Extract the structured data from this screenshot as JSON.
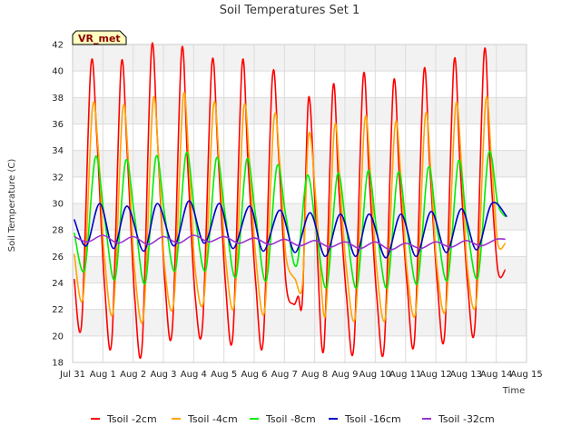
{
  "chart_data": {
    "type": "line",
    "title": "Soil Temperatures Set 1",
    "xlabel": "Time",
    "ylabel": "Soil Temperature (C)",
    "badge": "VR_met",
    "x_ticks": [
      "Jul 31",
      "Aug 1",
      "Aug 2",
      "Aug 3",
      "Aug 4",
      "Aug 5",
      "Aug 6",
      "Aug 7",
      "Aug 8",
      "Aug 9",
      "Aug 10",
      "Aug 11",
      "Aug 12",
      "Aug 13",
      "Aug 14",
      "Aug 15"
    ],
    "xlim": [
      0,
      15
    ],
    "ylim": [
      18,
      42
    ],
    "y_ticks": [
      18,
      20,
      22,
      24,
      26,
      28,
      30,
      32,
      34,
      36,
      38,
      40,
      42
    ],
    "grid": true,
    "legend_position": "bottom",
    "series": [
      {
        "name": "Tsoil -2cm",
        "color": "#ff0000",
        "x": [
          0.05,
          0.3,
          0.6,
          0.8,
          1.05,
          1.3,
          1.6,
          1.8,
          2.05,
          2.3,
          2.6,
          2.8,
          3.05,
          3.3,
          3.6,
          3.8,
          4.05,
          4.3,
          4.6,
          4.8,
          5.05,
          5.3,
          5.6,
          5.8,
          6.05,
          6.3,
          6.6,
          6.8,
          7.05,
          7.3,
          7.45,
          7.6,
          7.8,
          8.05,
          8.3,
          8.6,
          8.8,
          9.05,
          9.3,
          9.6,
          9.8,
          10.05,
          10.3,
          10.6,
          10.8,
          11.05,
          11.3,
          11.6,
          11.8,
          12.05,
          12.3,
          12.6,
          12.8,
          13.05,
          13.3,
          13.6,
          13.8,
          14.05,
          14.3
        ],
        "y": [
          24.3,
          21.0,
          40.3,
          35.0,
          24.0,
          19.8,
          40.3,
          34.0,
          23.0,
          19.4,
          41.5,
          35.0,
          24.0,
          20.7,
          41.5,
          33.0,
          23.0,
          21.0,
          40.5,
          34.0,
          24.0,
          20.2,
          40.5,
          33.0,
          24.0,
          19.7,
          39.5,
          34.0,
          24.0,
          22.4,
          23.0,
          23.0,
          38.0,
          28.0,
          19.0,
          38.7,
          31.0,
          23.0,
          19.4,
          39.5,
          32.0,
          23.0,
          19.3,
          39.0,
          32.0,
          24.0,
          19.8,
          39.8,
          33.0,
          24.0,
          20.3,
          40.6,
          33.0,
          24.0,
          20.9,
          41.4,
          33.0,
          25.0,
          25.0
        ]
      },
      {
        "name": "Tsoil -4cm",
        "color": "#ffa500",
        "x": [
          0.05,
          0.35,
          0.65,
          0.85,
          1.05,
          1.35,
          1.65,
          1.85,
          2.05,
          2.35,
          2.65,
          2.85,
          3.05,
          3.35,
          3.65,
          3.85,
          4.05,
          4.35,
          4.65,
          4.85,
          5.05,
          5.35,
          5.65,
          5.85,
          6.05,
          6.35,
          6.65,
          6.85,
          7.05,
          7.35,
          7.6,
          7.8,
          8.05,
          8.35,
          8.65,
          8.85,
          9.05,
          9.35,
          9.65,
          9.85,
          10.05,
          10.35,
          10.65,
          10.85,
          11.05,
          11.35,
          11.65,
          11.85,
          12.05,
          12.35,
          12.65,
          12.85,
          13.05,
          13.35,
          13.65,
          13.85,
          14.05,
          14.3
        ],
        "y": [
          26.2,
          23.0,
          37.1,
          34.0,
          26.0,
          22.0,
          37.0,
          33.0,
          25.0,
          21.6,
          37.6,
          33.0,
          25.0,
          22.7,
          38.0,
          33.0,
          25.0,
          23.0,
          37.3,
          33.0,
          26.0,
          22.5,
          37.1,
          33.0,
          26.0,
          22.0,
          36.3,
          33.0,
          26.0,
          24.3,
          24.0,
          35.2,
          30.0,
          21.5,
          35.7,
          31.0,
          25.0,
          21.6,
          36.2,
          32.0,
          25.0,
          21.6,
          35.8,
          32.0,
          25.0,
          22.0,
          36.5,
          32.0,
          25.0,
          22.4,
          37.2,
          33.0,
          25.0,
          22.8,
          37.7,
          33.0,
          27.0,
          27.0
        ]
      },
      {
        "name": "Tsoil -8cm",
        "color": "#00ee00",
        "x": [
          0.05,
          0.4,
          0.75,
          1.05,
          1.4,
          1.75,
          2.05,
          2.4,
          2.75,
          3.05,
          3.4,
          3.75,
          4.05,
          4.4,
          4.75,
          5.05,
          5.4,
          5.75,
          6.05,
          6.4,
          6.75,
          7.05,
          7.4,
          7.75,
          8.05,
          8.4,
          8.75,
          9.05,
          9.4,
          9.75,
          10.05,
          10.4,
          10.75,
          11.05,
          11.4,
          11.75,
          12.05,
          12.4,
          12.75,
          13.05,
          13.4,
          13.75,
          14.05,
          14.3
        ],
        "y": [
          27.8,
          25.0,
          33.5,
          29.0,
          24.3,
          33.2,
          29.0,
          24.0,
          33.5,
          29.0,
          25.0,
          33.8,
          29.0,
          25.0,
          33.4,
          29.0,
          24.5,
          33.3,
          29.0,
          24.2,
          32.8,
          29.0,
          25.3,
          32.1,
          28.0,
          23.7,
          32.2,
          28.0,
          23.7,
          32.4,
          28.0,
          23.7,
          32.3,
          28.0,
          24.0,
          32.7,
          28.0,
          24.3,
          33.2,
          28.0,
          24.5,
          33.8,
          30.0,
          29.0
        ]
      },
      {
        "name": "Tsoil -16cm",
        "color": "#0000cc",
        "x": [
          0.05,
          0.45,
          0.9,
          1.35,
          1.8,
          2.35,
          2.8,
          3.35,
          3.85,
          4.35,
          4.85,
          5.3,
          5.85,
          6.3,
          6.85,
          7.35,
          7.85,
          8.35,
          8.85,
          9.35,
          9.8,
          10.35,
          10.85,
          11.35,
          11.85,
          12.35,
          12.85,
          13.35,
          13.85,
          14.35
        ],
        "y": [
          28.8,
          26.8,
          30.0,
          26.6,
          29.8,
          26.4,
          30.0,
          26.8,
          30.2,
          27.0,
          30.0,
          26.6,
          29.8,
          26.4,
          29.5,
          26.3,
          29.3,
          26.0,
          29.2,
          26.0,
          29.2,
          25.9,
          29.2,
          26.0,
          29.4,
          26.3,
          29.6,
          26.5,
          30.0,
          29.0
        ]
      },
      {
        "name": "Tsoil -32cm",
        "color": "#9932cc",
        "x": [
          0.05,
          0.5,
          1.0,
          1.5,
          2.0,
          2.5,
          3.0,
          3.5,
          4.0,
          4.5,
          5.0,
          5.5,
          6.0,
          6.5,
          7.0,
          7.5,
          8.0,
          8.5,
          9.0,
          9.5,
          10.0,
          10.5,
          11.0,
          11.5,
          12.0,
          12.5,
          13.0,
          13.5,
          14.0,
          14.3
        ],
        "y": [
          27.5,
          27.1,
          27.6,
          27.0,
          27.5,
          26.9,
          27.5,
          27.0,
          27.6,
          27.1,
          27.5,
          27.0,
          27.4,
          26.9,
          27.3,
          26.8,
          27.2,
          26.7,
          27.1,
          26.6,
          27.1,
          26.5,
          27.0,
          26.6,
          27.1,
          26.7,
          27.2,
          26.8,
          27.3,
          27.3
        ]
      }
    ]
  }
}
